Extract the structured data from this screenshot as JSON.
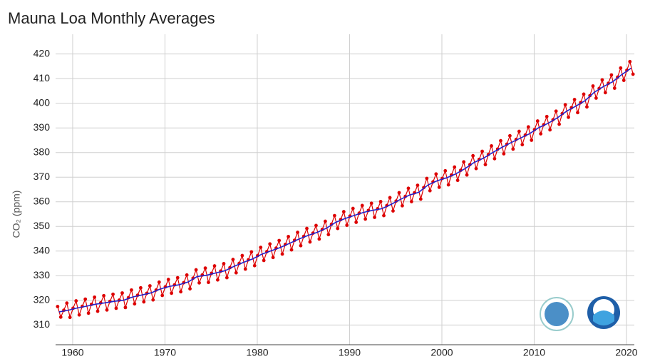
{
  "chart_data": {
    "type": "line",
    "title": "Mauna Loa Monthly Averages",
    "y_label": "CO₂ (ppm)",
    "xlim": [
      1958.15,
      2020.85
    ],
    "xticks": [
      1960,
      1970,
      1980,
      1990,
      2000,
      2010,
      2020
    ],
    "ylim": [
      302,
      428
    ],
    "yticks": [
      310,
      320,
      330,
      340,
      350,
      360,
      370,
      380,
      390,
      400,
      410,
      420
    ],
    "grid": true,
    "series": [
      {
        "color": "#dd0000",
        "markers": true,
        "x": [
          1958.37,
          1958.71,
          1959.04,
          1959.37,
          1959.71,
          1960.04,
          1960.37,
          1960.71,
          1961.04,
          1961.37,
          1961.71,
          1962.04,
          1962.37,
          1962.71,
          1963.04,
          1963.37,
          1963.71,
          1964.04,
          1964.37,
          1964.71,
          1965.04,
          1965.37,
          1965.71,
          1966.04,
          1966.37,
          1966.71,
          1967.04,
          1967.37,
          1967.71,
          1968.04,
          1968.37,
          1968.71,
          1969.04,
          1969.37,
          1969.71,
          1970.04,
          1970.37,
          1970.71,
          1971.04,
          1971.37,
          1971.71,
          1972.04,
          1972.37,
          1972.71,
          1973.04,
          1973.37,
          1973.71,
          1974.04,
          1974.37,
          1974.71,
          1975.04,
          1975.37,
          1975.71,
          1976.04,
          1976.37,
          1976.71,
          1977.04,
          1977.37,
          1977.71,
          1978.04,
          1978.37,
          1978.71,
          1979.04,
          1979.37,
          1979.71,
          1980.04,
          1980.37,
          1980.71,
          1981.04,
          1981.37,
          1981.71,
          1982.04,
          1982.37,
          1982.71,
          1983.04,
          1983.37,
          1983.71,
          1984.04,
          1984.37,
          1984.71,
          1985.04,
          1985.37,
          1985.71,
          1986.04,
          1986.37,
          1986.71,
          1987.04,
          1987.37,
          1987.71,
          1988.04,
          1988.37,
          1988.71,
          1989.04,
          1989.37,
          1989.71,
          1990.04,
          1990.37,
          1990.71,
          1991.04,
          1991.37,
          1991.71,
          1992.04,
          1992.37,
          1992.71,
          1993.04,
          1993.37,
          1993.71,
          1994.04,
          1994.37,
          1994.71,
          1995.04,
          1995.37,
          1995.71,
          1996.04,
          1996.37,
          1996.71,
          1997.04,
          1997.37,
          1997.71,
          1998.04,
          1998.37,
          1998.71,
          1999.04,
          1999.37,
          1999.71,
          2000.04,
          2000.37,
          2000.71,
          2001.04,
          2001.37,
          2001.71,
          2002.04,
          2002.37,
          2002.71,
          2003.04,
          2003.37,
          2003.71,
          2004.04,
          2004.37,
          2004.71,
          2005.04,
          2005.37,
          2005.71,
          2006.04,
          2006.37,
          2006.71,
          2007.04,
          2007.37,
          2007.71,
          2008.04,
          2008.37,
          2008.71,
          2009.04,
          2009.37,
          2009.71,
          2010.04,
          2010.37,
          2010.71,
          2011.04,
          2011.37,
          2011.71,
          2012.04,
          2012.37,
          2012.71,
          2013.04,
          2013.37,
          2013.71,
          2014.04,
          2014.37,
          2014.71,
          2015.04,
          2015.37,
          2015.71,
          2016.04,
          2016.37,
          2016.71,
          2017.04,
          2017.37,
          2017.71,
          2018.04,
          2018.37,
          2018.71,
          2019.04,
          2019.37,
          2019.71,
          2020.04,
          2020.37,
          2020.71
        ],
        "values": [
          317.5,
          313.2,
          316.0,
          318.9,
          313.1,
          316.8,
          319.8,
          314.1,
          317.6,
          320.5,
          314.8,
          318.4,
          321.3,
          315.6,
          319.0,
          321.9,
          316.1,
          319.6,
          322.5,
          316.8,
          320.1,
          323.0,
          317.1,
          321.1,
          324.2,
          318.6,
          322.1,
          325.1,
          319.4,
          322.9,
          325.9,
          320.2,
          324.2,
          327.4,
          322.0,
          325.5,
          328.5,
          322.9,
          326.3,
          329.2,
          323.5,
          327.2,
          330.3,
          324.7,
          329.0,
          332.4,
          327.1,
          330.3,
          333.1,
          327.3,
          331.0,
          334.0,
          328.3,
          331.9,
          334.9,
          329.2,
          333.3,
          336.6,
          331.2,
          335.0,
          338.2,
          332.7,
          336.5,
          339.7,
          334.1,
          338.2,
          341.5,
          336.2,
          339.8,
          342.9,
          337.4,
          341.2,
          344.3,
          338.8,
          342.7,
          345.9,
          340.5,
          344.4,
          347.6,
          342.2,
          346.0,
          349.2,
          343.7,
          347.3,
          350.4,
          344.9,
          348.8,
          352.1,
          346.7,
          350.9,
          354.4,
          349.2,
          352.8,
          356.0,
          350.5,
          354.2,
          357.3,
          351.7,
          355.4,
          358.5,
          353.0,
          356.5,
          359.4,
          353.7,
          357.2,
          360.1,
          354.4,
          358.5,
          361.7,
          356.3,
          360.3,
          363.7,
          358.4,
          362.2,
          365.5,
          360.1,
          363.7,
          366.7,
          361.1,
          365.8,
          369.5,
          364.5,
          368.1,
          371.3,
          365.9,
          369.5,
          372.6,
          366.9,
          370.9,
          374.1,
          368.7,
          372.8,
          376.2,
          370.9,
          375.1,
          378.7,
          373.5,
          377.2,
          380.5,
          375.1,
          379.2,
          382.7,
          377.5,
          381.4,
          384.8,
          379.5,
          383.4,
          386.8,
          381.4,
          385.3,
          388.6,
          383.2,
          387.1,
          390.4,
          385.0,
          389.3,
          392.8,
          387.6,
          391.3,
          394.6,
          389.2,
          393.3,
          396.8,
          391.5,
          395.8,
          399.4,
          394.3,
          398.2,
          401.5,
          396.2,
          400.3,
          403.7,
          398.5,
          403.1,
          407.0,
          402.1,
          406.0,
          409.5,
          404.3,
          408.1,
          411.5,
          406.1,
          410.6,
          414.3,
          409.3,
          413.4,
          416.9,
          411.8
        ]
      },
      {
        "color": "#2222cc",
        "markers": false,
        "x": [
          1958.5,
          1959.5,
          1960.5,
          1961.5,
          1962.5,
          1963.5,
          1964.5,
          1965.5,
          1966.5,
          1967.5,
          1968.5,
          1969.5,
          1970.5,
          1971.5,
          1972.5,
          1973.5,
          1974.5,
          1975.5,
          1976.5,
          1977.5,
          1978.5,
          1979.5,
          1980.5,
          1981.5,
          1982.5,
          1983.5,
          1984.5,
          1985.5,
          1986.5,
          1987.5,
          1988.5,
          1989.5,
          1990.5,
          1991.5,
          1992.5,
          1993.5,
          1994.5,
          1995.5,
          1996.5,
          1997.5,
          1998.5,
          1999.5,
          2000.5,
          2001.5,
          2002.5,
          2003.5,
          2004.5,
          2005.5,
          2006.5,
          2007.5,
          2008.5,
          2009.5,
          2010.5,
          2011.5,
          2012.5,
          2013.5,
          2014.5,
          2015.5,
          2016.5,
          2017.5,
          2018.5,
          2019.5,
          2020.5
        ],
        "values": [
          315.3,
          315.98,
          316.91,
          317.64,
          318.45,
          318.99,
          319.62,
          320.04,
          321.37,
          322.18,
          323.05,
          324.62,
          325.68,
          326.32,
          327.46,
          329.68,
          330.19,
          331.12,
          332.03,
          333.84,
          335.41,
          336.84,
          338.76,
          340.12,
          341.48,
          343.15,
          344.87,
          346.35,
          347.61,
          349.31,
          351.69,
          353.2,
          354.45,
          355.7,
          356.54,
          357.21,
          358.96,
          360.97,
          362.74,
          363.88,
          366.84,
          368.54,
          369.71,
          371.32,
          373.45,
          375.98,
          377.7,
          379.98,
          382.09,
          384.02,
          385.83,
          387.64,
          390.1,
          391.85,
          394.06,
          396.74,
          398.81,
          401.01,
          404.41,
          406.76,
          408.72,
          411.66,
          414.24
        ]
      }
    ]
  }
}
